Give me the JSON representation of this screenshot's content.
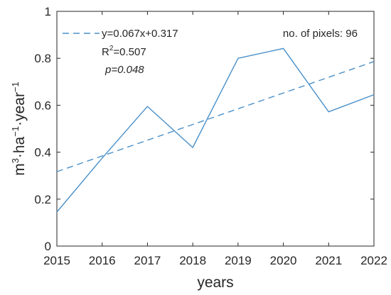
{
  "chart_data": {
    "type": "line",
    "xlabel": "years",
    "ylabel": "m³·ha⁻¹·year⁻¹",
    "ylabel_parts": [
      "m",
      "3",
      "·ha",
      "−1",
      "·year",
      "−1"
    ],
    "xlim": [
      2015,
      2022
    ],
    "ylim": [
      0,
      1
    ],
    "x_ticks": [
      "2015",
      "2016",
      "2017",
      "2018",
      "2019",
      "2020",
      "2021",
      "2022"
    ],
    "y_ticks": [
      "0",
      "0.2",
      "0.4",
      "0.6",
      "0.8",
      "1"
    ],
    "series": [
      {
        "style": "solid",
        "color": "#4a90c9",
        "x": [
          2015,
          2016,
          2017,
          2018,
          2019,
          2020,
          2021,
          2022
        ],
        "y": [
          0.145,
          0.375,
          0.595,
          0.42,
          0.8,
          0.842,
          0.572,
          0.645
        ]
      },
      {
        "style": "dashed",
        "color": "#4a90c9",
        "x": [
          2015,
          2022
        ],
        "y": [
          0.317,
          0.786
        ]
      }
    ],
    "legend": {
      "position": "top-left",
      "equation": "y=0.067x+0.317",
      "r2_prefix": "R",
      "r2_sup": "2",
      "r2_value": "=0.507",
      "p_value": "p=0.048"
    },
    "annotation": "no. of pixels: 96",
    "grid": false
  }
}
